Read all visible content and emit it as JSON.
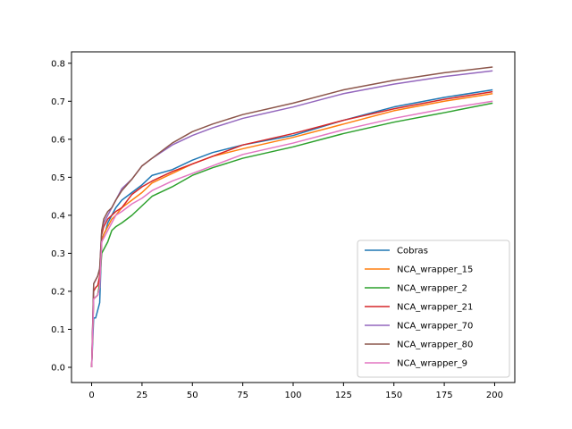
{
  "chart_data": {
    "type": "line",
    "title": "",
    "xlabel": "",
    "ylabel": "",
    "xlim": [
      -10,
      210
    ],
    "ylim": [
      -0.04,
      0.83
    ],
    "xticks": [
      0,
      25,
      50,
      75,
      100,
      125,
      150,
      175,
      200
    ],
    "yticks": [
      0.0,
      0.1,
      0.2,
      0.3,
      0.4,
      0.5,
      0.6,
      0.7,
      0.8
    ],
    "grid": false,
    "legend_position": "lower-right",
    "x": [
      0,
      1,
      2,
      3,
      4,
      5,
      6,
      7,
      8,
      10,
      12,
      15,
      20,
      25,
      30,
      40,
      50,
      60,
      75,
      100,
      125,
      150,
      175,
      199
    ],
    "series": [
      {
        "name": "Cobras",
        "color": "#1f77b4",
        "values": [
          0.0,
          0.13,
          0.13,
          0.15,
          0.17,
          0.33,
          0.35,
          0.36,
          0.38,
          0.4,
          0.42,
          0.44,
          0.46,
          0.48,
          0.505,
          0.52,
          0.545,
          0.565,
          0.585,
          0.61,
          0.65,
          0.685,
          0.71,
          0.73
        ]
      },
      {
        "name": "NCA_wrapper_15",
        "color": "#ff7f0e",
        "values": [
          0.0,
          0.18,
          0.185,
          0.19,
          0.22,
          0.33,
          0.35,
          0.36,
          0.37,
          0.39,
          0.4,
          0.42,
          0.44,
          0.46,
          0.485,
          0.51,
          0.535,
          0.555,
          0.575,
          0.605,
          0.64,
          0.675,
          0.7,
          0.72
        ]
      },
      {
        "name": "NCA_wrapper_2",
        "color": "#2ca02c",
        "values": [
          0.0,
          0.18,
          0.185,
          0.19,
          0.22,
          0.3,
          0.31,
          0.32,
          0.33,
          0.36,
          0.37,
          0.38,
          0.4,
          0.425,
          0.45,
          0.475,
          0.505,
          0.525,
          0.55,
          0.58,
          0.615,
          0.645,
          0.67,
          0.695
        ]
      },
      {
        "name": "NCA_wrapper_21",
        "color": "#d62728",
        "values": [
          0.0,
          0.2,
          0.21,
          0.215,
          0.24,
          0.35,
          0.37,
          0.38,
          0.39,
          0.4,
          0.41,
          0.42,
          0.455,
          0.475,
          0.49,
          0.515,
          0.535,
          0.555,
          0.585,
          0.615,
          0.65,
          0.68,
          0.705,
          0.725
        ]
      },
      {
        "name": "NCA_wrapper_70",
        "color": "#9467bd",
        "values": [
          0.0,
          0.22,
          0.23,
          0.24,
          0.26,
          0.36,
          0.38,
          0.39,
          0.4,
          0.42,
          0.44,
          0.47,
          0.495,
          0.53,
          0.55,
          0.585,
          0.61,
          0.63,
          0.655,
          0.685,
          0.72,
          0.745,
          0.765,
          0.78
        ]
      },
      {
        "name": "NCA_wrapper_80",
        "color": "#8c564b",
        "values": [
          0.0,
          0.22,
          0.23,
          0.24,
          0.26,
          0.36,
          0.39,
          0.4,
          0.41,
          0.42,
          0.44,
          0.465,
          0.495,
          0.53,
          0.55,
          0.59,
          0.62,
          0.64,
          0.665,
          0.695,
          0.73,
          0.755,
          0.775,
          0.79
        ]
      },
      {
        "name": "NCA_wrapper_9",
        "color": "#e377c2",
        "values": [
          0.0,
          0.18,
          0.185,
          0.19,
          0.21,
          0.33,
          0.34,
          0.35,
          0.36,
          0.38,
          0.4,
          0.41,
          0.43,
          0.445,
          0.465,
          0.49,
          0.51,
          0.53,
          0.56,
          0.59,
          0.625,
          0.655,
          0.68,
          0.7
        ]
      }
    ]
  }
}
